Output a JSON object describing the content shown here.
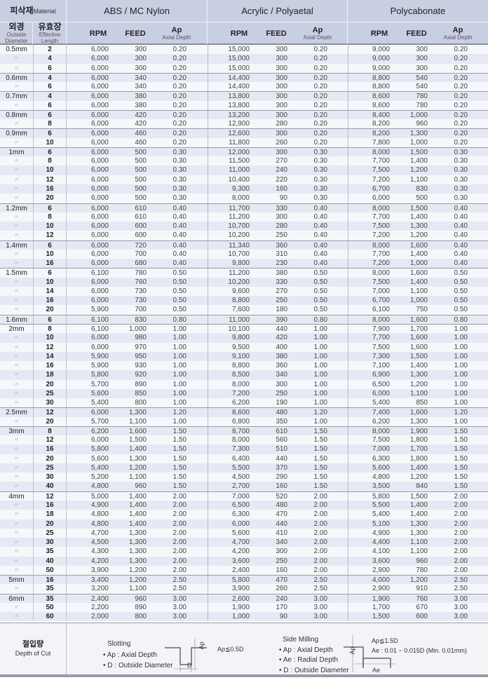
{
  "header": {
    "material_ko": "피삭재",
    "material_en": "Material",
    "groups": [
      "ABS / MC Nylon",
      "Acrylic / Polyaetal",
      "Polycabonate"
    ],
    "dia_ko": "외경",
    "dia_en1": "Outside",
    "dia_en2": "Diameter",
    "len_ko": "유효장",
    "len_en1": "Effective",
    "len_en2": "Length",
    "rpm": "RPM",
    "feed": "FEED",
    "ap": "Ap",
    "ap_sub": "Axial Depth"
  },
  "colors": {
    "header_bg": "#c9cfe3",
    "row_alt": "#e6e9f3",
    "row": "#f6f7fa"
  },
  "rows": [
    [
      "0.5mm",
      "2",
      "6,000",
      "300",
      "0.20",
      "15,000",
      "300",
      "0.20",
      "9,000",
      "300",
      "0.20"
    ],
    [
      "〃",
      "4",
      "6,000",
      "300",
      "0.20",
      "15,000",
      "300",
      "0.20",
      "9,000",
      "300",
      "0.20"
    ],
    [
      "〃",
      "6",
      "6,000",
      "300",
      "0.20",
      "15,000",
      "300",
      "0.20",
      "9,000",
      "300",
      "0.20"
    ],
    [
      "0.6mm",
      "4",
      "6,000",
      "340",
      "0.20",
      "14,400",
      "300",
      "0.20",
      "8,800",
      "540",
      "0.20"
    ],
    [
      "〃",
      "6",
      "6,000",
      "340",
      "0.20",
      "14,400",
      "300",
      "0.20",
      "8,800",
      "540",
      "0.20"
    ],
    [
      "0.7mm",
      "4",
      "6,000",
      "380",
      "0.20",
      "13,800",
      "300",
      "0.20",
      "8,600",
      "780",
      "0.20"
    ],
    [
      "〃",
      "6",
      "6,000",
      "380",
      "0.20",
      "13,800",
      "300",
      "0.20",
      "8,600",
      "780",
      "0.20"
    ],
    [
      "0.8mm",
      "6",
      "6,000",
      "420",
      "0.20",
      "13,200",
      "300",
      "0.20",
      "8,400",
      "1,000",
      "0.20"
    ],
    [
      "〃",
      "8",
      "6,000",
      "420",
      "0.20",
      "12,900",
      "280",
      "0.20",
      "8,200",
      "960",
      "0.20"
    ],
    [
      "0.9mm",
      "6",
      "6,000",
      "460",
      "0.20",
      "12,600",
      "300",
      "0.20",
      "8,200",
      "1,300",
      "0.20"
    ],
    [
      "〃",
      "10",
      "6,000",
      "460",
      "0.20",
      "11,800",
      "260",
      "0.20",
      "7,800",
      "1,000",
      "0.20"
    ],
    [
      "1mm",
      "6",
      "6,000",
      "500",
      "0.30",
      "12,000",
      "300",
      "0.30",
      "8,000",
      "1,500",
      "0.30"
    ],
    [
      "〃",
      "8",
      "6,000",
      "500",
      "0.30",
      "11,500",
      "270",
      "0.30",
      "7,700",
      "1,400",
      "0.30"
    ],
    [
      "〃",
      "10",
      "6,000",
      "500",
      "0.30",
      "11,000",
      "240",
      "0.30",
      "7,500",
      "1,200",
      "0.30"
    ],
    [
      "〃",
      "12",
      "6,000",
      "500",
      "0.30",
      "10,400",
      "220",
      "0.30",
      "7,200",
      "1,100",
      "0.30"
    ],
    [
      "〃",
      "16",
      "6,000",
      "500",
      "0.30",
      "9,300",
      "160",
      "0.30",
      "6,700",
      "830",
      "0.30"
    ],
    [
      "〃",
      "20",
      "6,000",
      "500",
      "0.30",
      "8,000",
      "90",
      "0.30",
      "6,000",
      "500",
      "0.30"
    ],
    [
      "1.2mm",
      "6",
      "6,000",
      "610",
      "0.40",
      "11,700",
      "330",
      "0.40",
      "8,000",
      "1,500",
      "0.40"
    ],
    [
      "〃",
      "8",
      "6,000",
      "610",
      "0.40",
      "11,200",
      "300",
      "0.40",
      "7,700",
      "1,400",
      "0.40"
    ],
    [
      "〃",
      "10",
      "6,000",
      "600",
      "0.40",
      "10,700",
      "280",
      "0.40",
      "7,500",
      "1,300",
      "0.40"
    ],
    [
      "〃",
      "12",
      "6,000",
      "600",
      "0.40",
      "10,200",
      "250",
      "0.40",
      "7,200",
      "1,200",
      "0.40"
    ],
    [
      "1.4mm",
      "6",
      "6,000",
      "720",
      "0.40",
      "11,340",
      "360",
      "0.40",
      "8,000",
      "1,600",
      "0.40"
    ],
    [
      "〃",
      "10",
      "6,000",
      "700",
      "0.40",
      "10,700",
      "310",
      "0.40",
      "7,700",
      "1,400",
      "0.40"
    ],
    [
      "〃",
      "16",
      "6,000",
      "680",
      "0.40",
      "9,800",
      "230",
      "0.40",
      "7,200",
      "1,000",
      "0.40"
    ],
    [
      "1.5mm",
      "6",
      "6,100",
      "780",
      "0.50",
      "11,200",
      "380",
      "0.50",
      "8,000",
      "1,600",
      "0.50"
    ],
    [
      "〃",
      "10",
      "6,000",
      "760",
      "0.50",
      "10,200",
      "330",
      "0.50",
      "7,500",
      "1,400",
      "0.50"
    ],
    [
      "〃",
      "14",
      "6,000",
      "730",
      "0.50",
      "9,600",
      "270",
      "0.50",
      "7,000",
      "1,100",
      "0.50"
    ],
    [
      "〃",
      "16",
      "6,000",
      "730",
      "0.50",
      "8,800",
      "250",
      "0.50",
      "6,700",
      "1,000",
      "0.50"
    ],
    [
      "〃",
      "20",
      "5,900",
      "700",
      "0.50",
      "7,600",
      "180",
      "0.50",
      "6,100",
      "750",
      "0.50"
    ],
    [
      "1.6mm",
      "6",
      "6,100",
      "830",
      "0.80",
      "11,000",
      "390",
      "0.80",
      "8,000",
      "1,600",
      "0.80"
    ],
    [
      "2mm",
      "8",
      "6,100",
      "1,000",
      "1.00",
      "10,100",
      "440",
      "1.00",
      "7,900",
      "1,700",
      "1.00"
    ],
    [
      "〃",
      "10",
      "6,000",
      "980",
      "1.00",
      "9,800",
      "420",
      "1.00",
      "7,700",
      "1,600",
      "1.00"
    ],
    [
      "〃",
      "12",
      "6,000",
      "970",
      "1.00",
      "9,500",
      "400",
      "1.00",
      "7,500",
      "1,600",
      "1.00"
    ],
    [
      "〃",
      "14",
      "5,900",
      "950",
      "1.00",
      "9,100",
      "380",
      "1.00",
      "7,300",
      "1,500",
      "1.00"
    ],
    [
      "〃",
      "16",
      "5,900",
      "930",
      "1.00",
      "8,800",
      "360",
      "1.00",
      "7,100",
      "1,400",
      "1.00"
    ],
    [
      "〃",
      "18",
      "5,800",
      "920",
      "1.00",
      "8,500",
      "340",
      "1.00",
      "6,900",
      "1,300",
      "1.00"
    ],
    [
      "〃",
      "20",
      "5,700",
      "890",
      "1.00",
      "8,000",
      "300",
      "1.00",
      "6,500",
      "1,200",
      "1.00"
    ],
    [
      "〃",
      "25",
      "5,600",
      "850",
      "1.00",
      "7,200",
      "250",
      "1.00",
      "6,000",
      "1,100",
      "1.00"
    ],
    [
      "〃",
      "30",
      "5,400",
      "800",
      "1.00",
      "6,200",
      "190",
      "1.00",
      "5,400",
      "850",
      "1.00"
    ],
    [
      "2.5mm",
      "12",
      "6,000",
      "1,300",
      "1.20",
      "8,600",
      "480",
      "1.20",
      "7,400",
      "1,600",
      "1.20"
    ],
    [
      "〃",
      "20",
      "5,700",
      "1,100",
      "1.00",
      "6,800",
      "350",
      "1.00",
      "6,200",
      "1,300",
      "1.00"
    ],
    [
      "3mm",
      "8",
      "6,200",
      "1,600",
      "1.50",
      "8,700",
      "610",
      "1.50",
      "8,000",
      "1,900",
      "1.50"
    ],
    [
      "〃",
      "12",
      "6,000",
      "1,500",
      "1.50",
      "8,000",
      "560",
      "1.50",
      "7,500",
      "1,800",
      "1.50"
    ],
    [
      "〃",
      "16",
      "5,800",
      "1,400",
      "1.50",
      "7,300",
      "510",
      "1.50",
      "7,000",
      "1,700",
      "1.50"
    ],
    [
      "〃",
      "20",
      "5,600",
      "1,300",
      "1.50",
      "6,400",
      "440",
      "1.50",
      "6,300",
      "1,800",
      "1.50"
    ],
    [
      "〃",
      "25",
      "5,400",
      "1,200",
      "1.50",
      "5,500",
      "370",
      "1.50",
      "5,600",
      "1,400",
      "1.50"
    ],
    [
      "〃",
      "30",
      "5,200",
      "1,100",
      "1.50",
      "4,500",
      "290",
      "1.50",
      "4,800",
      "1,200",
      "1.50"
    ],
    [
      "〃",
      "40",
      "4,800",
      "960",
      "1.50",
      "2,700",
      "160",
      "1.50",
      "3,500",
      "840",
      "1.50"
    ],
    [
      "4mm",
      "12",
      "5,000",
      "1,400",
      "2.00",
      "7,000",
      "520",
      "2.00",
      "5,800",
      "1,500",
      "2.00"
    ],
    [
      "〃",
      "16",
      "4,900",
      "1,400",
      "2.00",
      "6,500",
      "480",
      "2.00",
      "5,500",
      "1,400",
      "2.00"
    ],
    [
      "〃",
      "18",
      "4,800",
      "1,400",
      "2.00",
      "6,300",
      "470",
      "2.00",
      "5,400",
      "1,400",
      "2.00"
    ],
    [
      "〃",
      "20",
      "4,800",
      "1,400",
      "2.00",
      "6,000",
      "440",
      "2.00",
      "5,100",
      "1,300",
      "2.00"
    ],
    [
      "〃",
      "25",
      "4,700",
      "1,300",
      "2.00",
      "5,600",
      "410",
      "2.00",
      "4,900",
      "1,300",
      "2.00"
    ],
    [
      "〃",
      "30",
      "4,500",
      "1,300",
      "2.00",
      "4,700",
      "340",
      "2.00",
      "4,400",
      "1,100",
      "2.00"
    ],
    [
      "〃",
      "35",
      "4,300",
      "1,300",
      "2.00",
      "4,200",
      "300",
      "2.00",
      "4,100",
      "1,100",
      "2.00"
    ],
    [
      "〃",
      "40",
      "4,200",
      "1,300",
      "2.00",
      "3,600",
      "250",
      "2.00",
      "3,600",
      "960",
      "2.00"
    ],
    [
      "〃",
      "50",
      "3,900",
      "1,200",
      "2.00",
      "2,400",
      "160",
      "2.00",
      "2,900",
      "780",
      "2.00"
    ],
    [
      "5mm",
      "16",
      "3,400",
      "1,200",
      "2.50",
      "5,800",
      "470",
      "2.50",
      "4,000",
      "1,200",
      "2.50"
    ],
    [
      "〃",
      "35",
      "3,200",
      "1,100",
      "2.50",
      "3,900",
      "260",
      "2.50",
      "2,900",
      "910",
      "2.50"
    ],
    [
      "6mm",
      "35",
      "2,400",
      "960",
      "3.00",
      "2,600",
      "240",
      "3.00",
      "1,900",
      "760",
      "3.00"
    ],
    [
      "〃",
      "50",
      "2,200",
      "890",
      "3.00",
      "1,900",
      "170",
      "3.00",
      "1,700",
      "670",
      "3.00"
    ],
    [
      "〃",
      "60",
      "2,000",
      "800",
      "3.00",
      "1,000",
      "90",
      "3.00",
      "1,500",
      "600",
      "3.00"
    ]
  ],
  "footer": {
    "title_ko": "절입량",
    "title_en": "Depth of Cut",
    "slotting": {
      "title": "Slotting",
      "items": [
        "• Ap : Axial Depth",
        "• D : Outside Diameter"
      ],
      "formula": "Ap≦0.5D",
      "diagram_ap": "Ap",
      "diagram_d": "D"
    },
    "side": {
      "title": "Side Milling",
      "items": [
        "• Ap : Axial Depth",
        "• Ae : Radial Depth",
        "• D : Outside Diameter"
      ],
      "formula1": "Ap≦1.5D",
      "formula2": "Ae : 0.01 ~ 0.015D (Min. 0.01mm)",
      "diagram_ap": "Ap",
      "diagram_ae": "Ae"
    }
  }
}
